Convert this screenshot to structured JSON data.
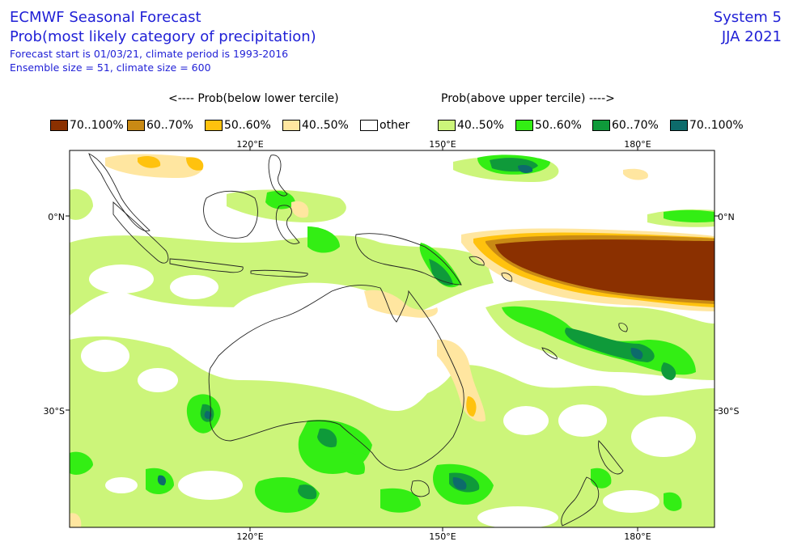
{
  "header": {
    "title": "ECMWF Seasonal Forecast",
    "subtitle": "Prob(most likely category of precipitation)",
    "forecast_line": "Forecast start is 01/03/21, climate period is 1993-2016",
    "ensemble_line": "Ensemble size = 51, climate size = 600",
    "system": "System 5",
    "season": "JJA 2021"
  },
  "legend": {
    "below_heading": "<---- Prob(below lower tercile)",
    "above_heading": "Prob(above upper tercile) ---->",
    "items": [
      {
        "label": "70..100%",
        "color": "#8b3000"
      },
      {
        "label": "60..70%",
        "color": "#c98a14"
      },
      {
        "label": "50..60%",
        "color": "#ffc20e"
      },
      {
        "label": "40..50%",
        "color": "#ffe6a0"
      },
      {
        "label": "other",
        "color": "#ffffff"
      },
      {
        "label": "40..50%",
        "color": "#ccf57a"
      },
      {
        "label": "50..60%",
        "color": "#33ee14"
      },
      {
        "label": "60..70%",
        "color": "#0f9a3a"
      },
      {
        "label": "70..100%",
        "color": "#0d6b6b"
      }
    ]
  },
  "axes": {
    "lon_labels": [
      "120°E",
      "150°E",
      "180°E"
    ],
    "lat_labels": [
      "0°N",
      "30°S"
    ]
  }
}
